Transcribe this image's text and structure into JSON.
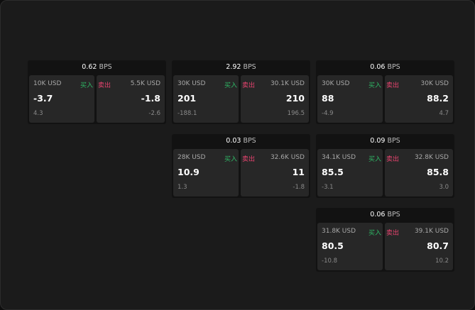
{
  "labels": {
    "buy": "买入",
    "sell": "卖出",
    "unit": "BPS"
  },
  "colors": {
    "buy": "#2fb866",
    "sell": "#e8436f"
  },
  "cards": [
    {
      "spread": "0.62",
      "buy": {
        "size": "10K USD",
        "price": "-3.7",
        "change": "4.3"
      },
      "sell": {
        "size": "5.5K USD",
        "price": "-1.8",
        "change": "-2.6"
      }
    },
    {
      "spread": "2.92",
      "buy": {
        "size": "30K USD",
        "price": "201",
        "change": "-188.1"
      },
      "sell": {
        "size": "30.1K USD",
        "price": "210",
        "change": "196.5"
      }
    },
    {
      "spread": "0.06",
      "buy": {
        "size": "30K USD",
        "price": "88",
        "change": "-4.9"
      },
      "sell": {
        "size": "30K USD",
        "price": "88.2",
        "change": "4.7"
      }
    },
    {
      "spread": "0.03",
      "buy": {
        "size": "28K USD",
        "price": "10.9",
        "change": "1.3"
      },
      "sell": {
        "size": "32.6K USD",
        "price": "11",
        "change": "-1.8"
      }
    },
    {
      "spread": "0.09",
      "buy": {
        "size": "34.1K USD",
        "price": "85.5",
        "change": "-3.1"
      },
      "sell": {
        "size": "32.8K USD",
        "price": "85.8",
        "change": "3.0"
      }
    },
    {
      "spread": "0.06",
      "buy": {
        "size": "31.8K USD",
        "price": "80.5",
        "change": "-10.8"
      },
      "sell": {
        "size": "39.1K USD",
        "price": "80.7",
        "change": "10.2"
      }
    }
  ]
}
